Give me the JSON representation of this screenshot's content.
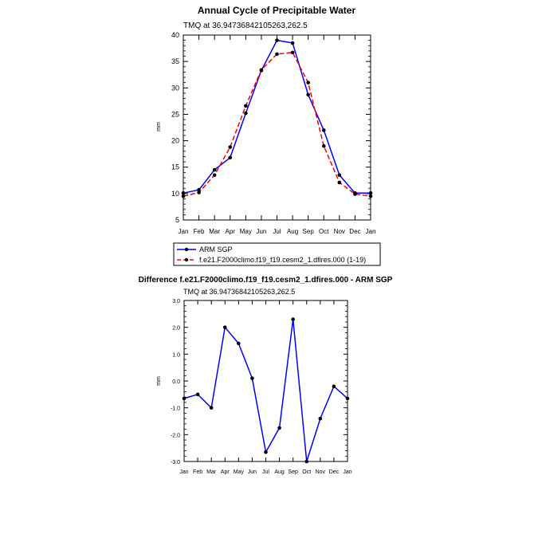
{
  "months": [
    "Jan",
    "Feb",
    "Mar",
    "Apr",
    "May",
    "Jun",
    "Jul",
    "Aug",
    "Sep",
    "Oct",
    "Nov",
    "Dec",
    "Jan"
  ],
  "chart_data": [
    {
      "type": "line",
      "title": "Annual Cycle of Precipitable Water",
      "subtitle": "TMQ at 36.94736842105263,262.5",
      "xlabel": "",
      "ylabel": "mm",
      "ylim": [
        5,
        40
      ],
      "yticks": [
        "5",
        "10",
        "15",
        "20",
        "25",
        "30",
        "35",
        "40"
      ],
      "categories": [
        "Jan",
        "Feb",
        "Mar",
        "Apr",
        "May",
        "Jun",
        "Jul",
        "Aug",
        "Sep",
        "Oct",
        "Nov",
        "Dec",
        "Jan"
      ],
      "series": [
        {
          "name": "ARM SGP",
          "color": "#0000ff",
          "dash": "solid",
          "values": [
            10.1,
            10.7,
            14.5,
            16.8,
            25.2,
            33.3,
            39.0,
            38.5,
            28.7,
            22.0,
            13.5,
            10.1,
            10.1
          ]
        },
        {
          "name": "f.e21.F2000climo.f19_f19.cesm2_1.dfires.000 (1-19)",
          "color": "#ff0000",
          "dash": "dashed",
          "values": [
            9.5,
            10.2,
            13.5,
            18.8,
            26.6,
            33.4,
            36.4,
            36.7,
            31.0,
            19.0,
            12.1,
            9.9,
            9.5
          ]
        }
      ],
      "legend_position": "below"
    },
    {
      "type": "line",
      "title": "Difference f.e21.F2000climo.f19_f19.cesm2_1.dfires.000 - ARM SGP",
      "subtitle": "TMQ at 36.94736842105263,262.5",
      "xlabel": "",
      "ylabel": "mm",
      "ylim": [
        -3.0,
        3.0
      ],
      "yticks": [
        "-3.0",
        "-2.0",
        "-1.0",
        "0.0",
        "1.0",
        "2.0",
        "3.0"
      ],
      "categories": [
        "Jan",
        "Feb",
        "Mar",
        "Apr",
        "May",
        "Jun",
        "Jul",
        "Aug",
        "Sep",
        "Oct",
        "Nov",
        "Dec",
        "Jan"
      ],
      "series": [
        {
          "name": "Difference",
          "color": "#0000ff",
          "dash": "solid",
          "values": [
            -0.65,
            -0.5,
            -1.0,
            2.0,
            1.4,
            0.1,
            -2.65,
            -1.75,
            2.3,
            -3.0,
            -1.4,
            -0.2,
            -0.65
          ]
        }
      ]
    }
  ]
}
